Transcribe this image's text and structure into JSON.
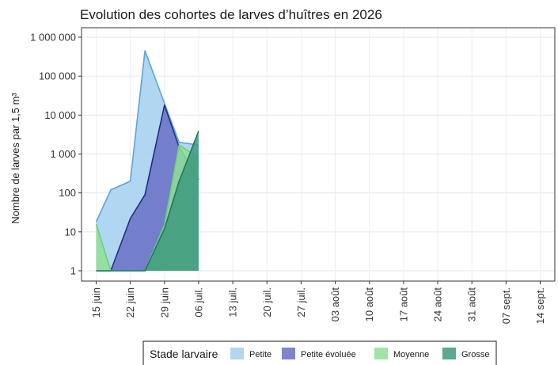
{
  "chart_data": {
    "type": "area",
    "title": "Evolution des cohortes de larves d’huîtres en 2026",
    "xlabel": "",
    "ylabel": "Nombre de larves par 1,5 m³",
    "y_scale": "log10",
    "ylim": [
      1,
      1000000
    ],
    "xlim": [
      "2026-06-12",
      "2026-09-17"
    ],
    "grid": true,
    "legend_position": "bottom",
    "y_ticks": [
      {
        "value": 1,
        "label": "1"
      },
      {
        "value": 10,
        "label": "10"
      },
      {
        "value": 100,
        "label": "100"
      },
      {
        "value": 1000,
        "label": "1 000"
      },
      {
        "value": 10000,
        "label": "10 000"
      },
      {
        "value": 100000,
        "label": "100 000"
      },
      {
        "value": 1000000,
        "label": "1 000 000"
      }
    ],
    "x_ticks": [
      {
        "date": "2026-06-15",
        "label": "15 juin"
      },
      {
        "date": "2026-06-22",
        "label": "22 juin"
      },
      {
        "date": "2026-06-29",
        "label": "29 juin"
      },
      {
        "date": "2026-07-06",
        "label": "06 juil."
      },
      {
        "date": "2026-07-13",
        "label": "13 juil."
      },
      {
        "date": "2026-07-20",
        "label": "20 juil."
      },
      {
        "date": "2026-07-27",
        "label": "27 juil."
      },
      {
        "date": "2026-08-03",
        "label": "03 août"
      },
      {
        "date": "2026-08-10",
        "label": "10 août"
      },
      {
        "date": "2026-08-17",
        "label": "17 août"
      },
      {
        "date": "2026-08-24",
        "label": "24 août"
      },
      {
        "date": "2026-08-31",
        "label": "31 août"
      },
      {
        "date": "2026-09-07",
        "label": "07 sept."
      },
      {
        "date": "2026-09-14",
        "label": "14 sept."
      }
    ],
    "legend_title": "Stade larvaire",
    "series": [
      {
        "name": "Petite",
        "fill": "#a9d2f0",
        "stroke": "#5aa5dc",
        "fill_opacity": 0.9,
        "points": [
          {
            "x": "2026-06-15",
            "y": 18
          },
          {
            "x": "2026-06-18",
            "y": 120
          },
          {
            "x": "2026-06-22",
            "y": 200
          },
          {
            "x": "2026-06-25",
            "y": 450000
          },
          {
            "x": "2026-06-29",
            "y": 20000
          },
          {
            "x": "2026-07-02",
            "y": 2000
          },
          {
            "x": "2026-07-06",
            "y": 1700
          }
        ]
      },
      {
        "name": "Petite évoluée",
        "fill": "#6870c4",
        "stroke": "#1f2f8a",
        "fill_opacity": 0.85,
        "points": [
          {
            "x": "2026-06-15",
            "y": 1
          },
          {
            "x": "2026-06-18",
            "y": 1
          },
          {
            "x": "2026-06-22",
            "y": 22
          },
          {
            "x": "2026-06-25",
            "y": 90
          },
          {
            "x": "2026-06-29",
            "y": 18000
          },
          {
            "x": "2026-07-02",
            "y": 1500
          },
          {
            "x": "2026-07-06",
            "y": 220
          }
        ]
      },
      {
        "name": "Moyenne",
        "fill": "#90e096",
        "stroke": "#6fd077",
        "fill_opacity": 0.85,
        "points": [
          {
            "x": "2026-06-15",
            "y": 16
          },
          {
            "x": "2026-06-18",
            "y": 1
          },
          {
            "x": "2026-06-22",
            "y": 1
          },
          {
            "x": "2026-06-25",
            "y": 1
          },
          {
            "x": "2026-06-29",
            "y": 15
          },
          {
            "x": "2026-07-02",
            "y": 1700
          },
          {
            "x": "2026-07-06",
            "y": 800
          }
        ]
      },
      {
        "name": "Grosse",
        "fill": "#3d9a7c",
        "stroke": "#1d7a5c",
        "fill_opacity": 0.85,
        "points": [
          {
            "x": "2026-06-15",
            "y": 1
          },
          {
            "x": "2026-06-18",
            "y": 1
          },
          {
            "x": "2026-06-22",
            "y": 1
          },
          {
            "x": "2026-06-25",
            "y": 1
          },
          {
            "x": "2026-06-29",
            "y": 12
          },
          {
            "x": "2026-07-02",
            "y": 200
          },
          {
            "x": "2026-07-06",
            "y": 3900
          }
        ]
      }
    ]
  }
}
